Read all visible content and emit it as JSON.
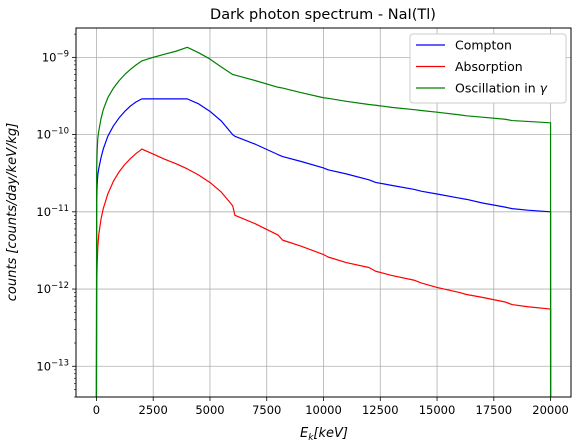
{
  "chart_data": {
    "type": "line",
    "title": "Dark photon spectrum - NaI(Tl)",
    "xlabel": "E_k[keV]",
    "ylabel": "counts [counts/day/keV/kg]",
    "xlim": [
      -900,
      20900
    ],
    "ylim": [
      4e-14,
      2.4e-09
    ],
    "yscale": "log",
    "grid": true,
    "legend_position": "top-right",
    "x_ticks": [
      0,
      2500,
      5000,
      7500,
      10000,
      12500,
      15000,
      17500,
      20000
    ],
    "x_tick_labels": [
      "0",
      "2500",
      "5000",
      "7500",
      "10000",
      "12500",
      "15000",
      "17500",
      "20000"
    ],
    "y_ticks": [
      1e-13,
      1e-12,
      1e-11,
      1e-10,
      1e-09
    ],
    "y_tick_mantissa": "10",
    "y_tick_exponents": [
      "−13",
      "−12",
      "−11",
      "−10",
      "−9"
    ],
    "series": [
      {
        "name": "Compton",
        "color": "#0000ff",
        "x": [
          0,
          10,
          30,
          60,
          100,
          200,
          300,
          500,
          750,
          1000,
          1250,
          1500,
          1750,
          2000,
          2500,
          3000,
          3500,
          4000,
          4500,
          5000,
          5500,
          6000,
          6100,
          7000,
          8000,
          8200,
          9000,
          10000,
          10200,
          11000,
          12000,
          12300,
          13000,
          14000,
          14300,
          15000,
          16000,
          16300,
          17000,
          18000,
          18300,
          19000,
          20000,
          20001
        ],
        "y": [
          4e-14,
          1.3e-11,
          2.2e-11,
          3e-11,
          3.6e-11,
          5e-11,
          6.5e-11,
          9.5e-11,
          1.3e-10,
          1.65e-10,
          2e-10,
          2.35e-10,
          2.65e-10,
          2.9e-10,
          2.9e-10,
          2.9e-10,
          2.9e-10,
          2.9e-10,
          2.5e-10,
          2e-10,
          1.5e-10,
          1e-10,
          9.5e-11,
          7.5e-11,
          5.5e-11,
          5.2e-11,
          4.5e-11,
          3.7e-11,
          3.5e-11,
          3.1e-11,
          2.6e-11,
          2.4e-11,
          2.2e-11,
          1.95e-11,
          1.85e-11,
          1.7e-11,
          1.5e-11,
          1.45e-11,
          1.3e-11,
          1.15e-11,
          1.1e-11,
          1.05e-11,
          1e-11,
          4e-14
        ]
      },
      {
        "name": "Absorption",
        "color": "#ff0000",
        "x": [
          0,
          10,
          30,
          60,
          100,
          200,
          300,
          500,
          750,
          1000,
          1250,
          1500,
          1750,
          2000,
          2500,
          3000,
          3500,
          4000,
          4500,
          5000,
          5500,
          6000,
          6100,
          7000,
          8000,
          8200,
          9000,
          10000,
          10200,
          11000,
          12000,
          12300,
          13000,
          14000,
          14300,
          15000,
          16000,
          16300,
          17000,
          18000,
          18300,
          19000,
          20000,
          20001
        ],
        "y": [
          4e-14,
          1e-12,
          2e-12,
          3.5e-12,
          5e-12,
          8e-12,
          1.1e-11,
          1.7e-11,
          2.5e-11,
          3.3e-11,
          4.1e-11,
          4.9e-11,
          5.7e-11,
          6.5e-11,
          5.6e-11,
          4.8e-11,
          4.2e-11,
          3.6e-11,
          3e-11,
          2.4e-11,
          1.8e-11,
          1.2e-11,
          9e-12,
          7e-12,
          5e-12,
          4.3e-12,
          3.6e-12,
          2.8e-12,
          2.6e-12,
          2.2e-12,
          1.9e-12,
          1.7e-12,
          1.5e-12,
          1.3e-12,
          1.2e-12,
          1.05e-12,
          9e-13,
          8.5e-13,
          7.8e-13,
          6.8e-13,
          6.3e-13,
          5.9e-13,
          5.5e-13,
          4e-14
        ]
      },
      {
        "name": "Oscillation in γ",
        "color": "#008000",
        "x": [
          0,
          10,
          30,
          60,
          100,
          200,
          300,
          500,
          750,
          1000,
          1250,
          1500,
          1750,
          2000,
          2500,
          3000,
          3500,
          4000,
          4500,
          5000,
          5500,
          6000,
          6100,
          7000,
          8000,
          8200,
          9000,
          10000,
          10200,
          11000,
          12000,
          12300,
          13000,
          14000,
          14300,
          15000,
          16000,
          16300,
          17000,
          18000,
          18300,
          19000,
          20000,
          20001
        ],
        "y": [
          4e-14,
          3.5e-11,
          6e-11,
          9e-11,
          1.1e-10,
          1.6e-10,
          2.1e-10,
          3e-10,
          4e-10,
          5e-10,
          6e-10,
          7e-10,
          8e-10,
          9e-10,
          1e-09,
          1.1e-09,
          1.2e-09,
          1.35e-09,
          1.15e-09,
          9.5e-10,
          7.5e-10,
          6e-10,
          5.9e-10,
          5e-10,
          4.1e-10,
          4e-10,
          3.5e-10,
          3e-10,
          2.95e-10,
          2.7e-10,
          2.45e-10,
          2.4e-10,
          2.25e-10,
          2.1e-10,
          2.05e-10,
          1.95e-10,
          1.8e-10,
          1.75e-10,
          1.68e-10,
          1.58e-10,
          1.52e-10,
          1.48e-10,
          1.42e-10,
          4e-14
        ]
      }
    ]
  }
}
